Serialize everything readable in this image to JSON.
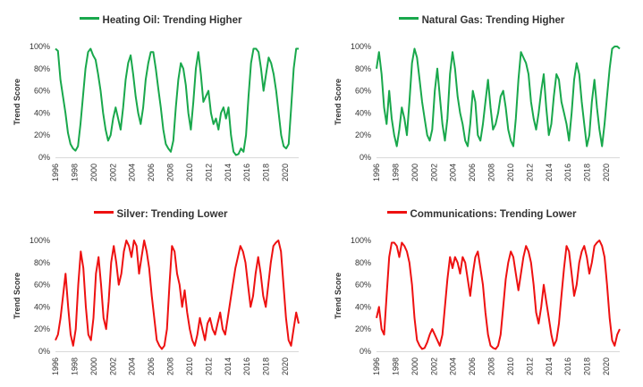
{
  "chart_data": [
    {
      "type": "line",
      "title": "",
      "series": [
        {
          "name": "Heating Oil: Trending Higher",
          "color": "#19a84c",
          "values": [
            98,
            96,
            70,
            55,
            40,
            22,
            12,
            8,
            6,
            10,
            30,
            55,
            80,
            95,
            98,
            92,
            88,
            75,
            60,
            40,
            25,
            15,
            20,
            35,
            45,
            35,
            25,
            45,
            70,
            85,
            92,
            75,
            55,
            40,
            30,
            45,
            70,
            85,
            95,
            95,
            80,
            62,
            45,
            25,
            12,
            8,
            5,
            15,
            45,
            70,
            85,
            80,
            65,
            40,
            25,
            50,
            80,
            95,
            75,
            50,
            55,
            60,
            40,
            30,
            35,
            25,
            40,
            45,
            35,
            45,
            20,
            5,
            2,
            3,
            8,
            5,
            20,
            55,
            85,
            98,
            98,
            95,
            80,
            60,
            75,
            90,
            85,
            75,
            60,
            40,
            20,
            10,
            8,
            12,
            45,
            80,
            98,
            98
          ]
        }
      ],
      "x_start": 1996,
      "x_end": 2021.4,
      "xticks": [
        "1996",
        "1998",
        "2000",
        "2002",
        "2004",
        "2006",
        "2008",
        "2010",
        "2012",
        "2014",
        "2016",
        "2018",
        "2020"
      ],
      "yticks": [
        "0%",
        "20%",
        "40%",
        "60%",
        "80%",
        "100%"
      ],
      "ylim": [
        0,
        100
      ],
      "ylabel": "Trend Score"
    },
    {
      "type": "line",
      "title": "",
      "series": [
        {
          "name": "Natural Gas: Trending Higher",
          "color": "#19a84c",
          "values": [
            80,
            95,
            75,
            45,
            30,
            60,
            35,
            20,
            10,
            25,
            45,
            35,
            20,
            50,
            85,
            98,
            90,
            70,
            50,
            35,
            20,
            15,
            25,
            60,
            80,
            55,
            30,
            15,
            35,
            75,
            95,
            80,
            55,
            40,
            30,
            15,
            10,
            30,
            60,
            50,
            20,
            15,
            30,
            50,
            70,
            45,
            25,
            30,
            40,
            55,
            60,
            45,
            25,
            15,
            10,
            35,
            70,
            95,
            90,
            85,
            75,
            50,
            35,
            25,
            40,
            60,
            75,
            45,
            20,
            30,
            55,
            75,
            70,
            50,
            40,
            30,
            15,
            40,
            70,
            85,
            75,
            50,
            30,
            10,
            20,
            50,
            70,
            45,
            25,
            10,
            30,
            55,
            80,
            98,
            100,
            100,
            98
          ]
        }
      ],
      "x_start": 1996,
      "x_end": 2021.4,
      "xticks": [
        "1996",
        "1998",
        "2000",
        "2002",
        "2004",
        "2006",
        "2008",
        "2010",
        "2012",
        "2014",
        "2016",
        "2018",
        "2020"
      ],
      "yticks": [
        "0%",
        "20%",
        "40%",
        "60%",
        "80%",
        "100%"
      ],
      "ylim": [
        0,
        100
      ],
      "ylabel": "Trend Score"
    },
    {
      "type": "line",
      "title": "",
      "series": [
        {
          "name": "Silver: Trending Lower",
          "color": "#ee1111",
          "values": [
            10,
            15,
            30,
            50,
            70,
            40,
            15,
            5,
            20,
            60,
            90,
            75,
            40,
            15,
            10,
            30,
            70,
            85,
            60,
            30,
            20,
            45,
            80,
            95,
            80,
            60,
            70,
            90,
            100,
            95,
            85,
            100,
            95,
            70,
            85,
            100,
            90,
            75,
            50,
            30,
            10,
            5,
            2,
            5,
            20,
            60,
            95,
            90,
            70,
            60,
            40,
            55,
            35,
            20,
            10,
            5,
            15,
            30,
            20,
            10,
            25,
            30,
            20,
            15,
            25,
            35,
            20,
            15,
            30,
            45,
            60,
            75,
            85,
            95,
            90,
            80,
            60,
            40,
            50,
            70,
            85,
            70,
            50,
            40,
            60,
            80,
            95,
            98,
            100,
            90,
            60,
            30,
            10,
            5,
            20,
            35,
            25
          ]
        }
      ],
      "x_start": 1996,
      "x_end": 2021.4,
      "xticks": [
        "1996",
        "1998",
        "2000",
        "2002",
        "2004",
        "2006",
        "2008",
        "2010",
        "2012",
        "2014",
        "2016",
        "2018",
        "2020"
      ],
      "yticks": [
        "0%",
        "20%",
        "40%",
        "60%",
        "80%",
        "100%"
      ],
      "ylim": [
        0,
        100
      ],
      "ylabel": "Trend Score"
    },
    {
      "type": "line",
      "title": "",
      "series": [
        {
          "name": "Communications: Trending Lower",
          "color": "#ee1111",
          "values": [
            30,
            40,
            20,
            15,
            50,
            85,
            98,
            98,
            95,
            85,
            98,
            95,
            90,
            80,
            60,
            30,
            10,
            5,
            2,
            3,
            8,
            15,
            20,
            15,
            10,
            5,
            15,
            40,
            65,
            85,
            75,
            85,
            80,
            70,
            85,
            80,
            65,
            50,
            70,
            85,
            90,
            75,
            60,
            35,
            15,
            5,
            3,
            2,
            5,
            15,
            40,
            65,
            80,
            90,
            85,
            70,
            55,
            70,
            85,
            95,
            90,
            80,
            60,
            35,
            25,
            40,
            60,
            45,
            30,
            15,
            5,
            10,
            25,
            50,
            75,
            95,
            90,
            70,
            50,
            60,
            80,
            90,
            95,
            85,
            70,
            80,
            95,
            98,
            100,
            95,
            85,
            60,
            30,
            10,
            5,
            15,
            20
          ]
        }
      ],
      "x_start": 1996,
      "x_end": 2021.4,
      "xticks": [
        "1996",
        "1998",
        "2000",
        "2002",
        "2004",
        "2006",
        "2008",
        "2010",
        "2012",
        "2014",
        "2016",
        "2018",
        "2020"
      ],
      "yticks": [
        "0%",
        "20%",
        "40%",
        "60%",
        "80%",
        "100%"
      ],
      "ylim": [
        0,
        100
      ],
      "ylabel": "Trend Score"
    }
  ]
}
